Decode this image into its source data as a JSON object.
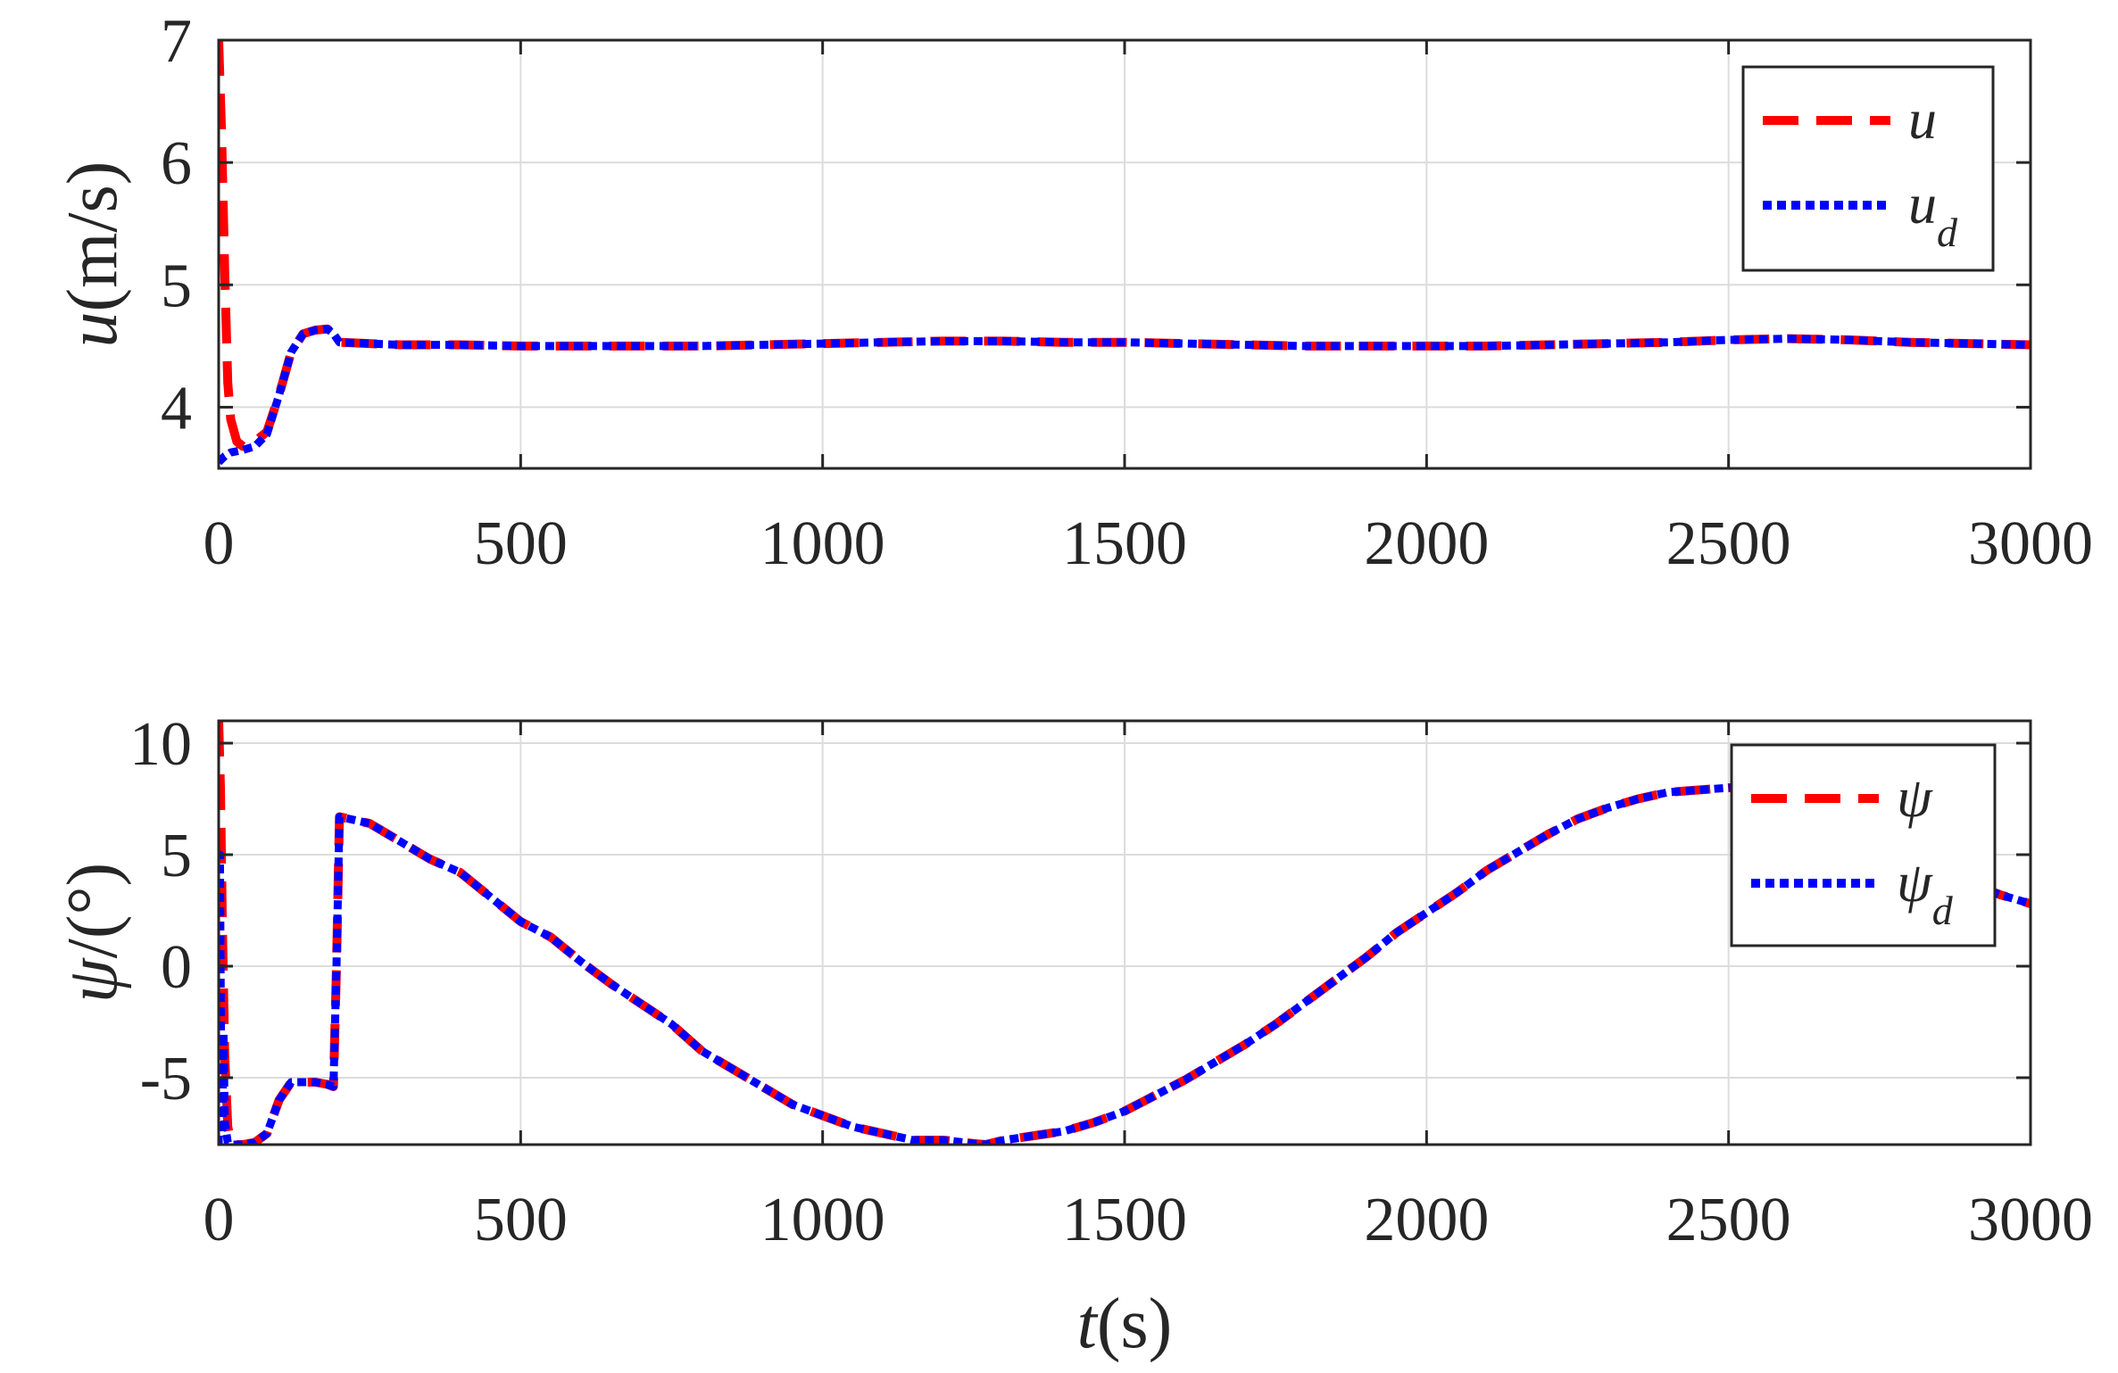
{
  "chart_data": [
    {
      "type": "line",
      "xlabel": {
        "var": "t",
        "unit": "(s)"
      },
      "ylabel": {
        "var": "u",
        "unit": "(m/s)"
      },
      "xlim": [
        0,
        3000
      ],
      "ylim": [
        3.5,
        7
      ],
      "x_ticks": [
        0,
        500,
        1000,
        1500,
        2000,
        2500,
        3000
      ],
      "x_tick_labels": [
        "0",
        "500",
        "1000",
        "1500",
        "2000",
        "2500",
        "3000"
      ],
      "y_ticks": [
        4,
        5,
        6,
        7
      ],
      "y_tick_labels": [
        "4",
        "5",
        "6",
        "7"
      ],
      "grid": true,
      "legend_position": "top-right",
      "series": [
        {
          "name": "u",
          "legend": {
            "base": "u",
            "sub": ""
          },
          "color": "#ff0000",
          "style": "dashed",
          "x": [
            0,
            5,
            10,
            15,
            20,
            30,
            40,
            60,
            80,
            100,
            120,
            140,
            160,
            180,
            190,
            200,
            250,
            300,
            400,
            500,
            600,
            700,
            800,
            900,
            1000,
            1100,
            1200,
            1300,
            1400,
            1500,
            1600,
            1700,
            1800,
            1900,
            2000,
            2100,
            2200,
            2300,
            2400,
            2500,
            2600,
            2700,
            2800,
            2900,
            3000
          ],
          "y": [
            7.0,
            6.2,
            5.1,
            4.2,
            3.9,
            3.72,
            3.68,
            3.72,
            3.8,
            4.1,
            4.45,
            4.6,
            4.63,
            4.64,
            4.6,
            4.53,
            4.52,
            4.51,
            4.51,
            4.5,
            4.5,
            4.5,
            4.5,
            4.51,
            4.52,
            4.53,
            4.54,
            4.54,
            4.53,
            4.53,
            4.52,
            4.51,
            4.5,
            4.5,
            4.5,
            4.5,
            4.51,
            4.52,
            4.53,
            4.55,
            4.56,
            4.55,
            4.53,
            4.52,
            4.51
          ]
        },
        {
          "name": "u_d",
          "legend": {
            "base": "u",
            "sub": "d"
          },
          "color": "#0000ff",
          "style": "dotted",
          "x": [
            0,
            10,
            20,
            40,
            60,
            80,
            100,
            120,
            140,
            160,
            180,
            190,
            200,
            250,
            300,
            400,
            500,
            600,
            700,
            800,
            900,
            1000,
            1100,
            1200,
            1300,
            1400,
            1500,
            1600,
            1700,
            1800,
            1900,
            2000,
            2100,
            2200,
            2300,
            2400,
            2500,
            2600,
            2700,
            2800,
            2900,
            3000
          ],
          "y": [
            3.55,
            3.6,
            3.63,
            3.65,
            3.68,
            3.78,
            4.1,
            4.45,
            4.6,
            4.63,
            4.64,
            4.6,
            4.53,
            4.52,
            4.51,
            4.51,
            4.5,
            4.5,
            4.5,
            4.5,
            4.51,
            4.52,
            4.53,
            4.54,
            4.54,
            4.53,
            4.53,
            4.52,
            4.51,
            4.5,
            4.5,
            4.5,
            4.5,
            4.51,
            4.52,
            4.53,
            4.55,
            4.56,
            4.55,
            4.53,
            4.52,
            4.51
          ]
        }
      ]
    },
    {
      "type": "line",
      "xlabel": {
        "var": "t",
        "unit": "(s)"
      },
      "ylabel": {
        "var": "ψ",
        "unit": "/(°)"
      },
      "xlim": [
        0,
        3000
      ],
      "ylim": [
        -8,
        11
      ],
      "x_ticks": [
        0,
        500,
        1000,
        1500,
        2000,
        2500,
        3000
      ],
      "x_tick_labels": [
        "0",
        "500",
        "1000",
        "1500",
        "2000",
        "2500",
        "3000"
      ],
      "y_ticks": [
        -5,
        0,
        5,
        10
      ],
      "y_tick_labels": [
        "-5",
        "0",
        "5",
        "10"
      ],
      "grid": true,
      "legend_position": "top-right",
      "series": [
        {
          "name": "ψ",
          "legend": {
            "base": "ψ",
            "sub": ""
          },
          "color": "#ff0000",
          "style": "dashed",
          "x": [
            0,
            3,
            6,
            10,
            15,
            20,
            30,
            40,
            60,
            80,
            100,
            120,
            140,
            160,
            180,
            190,
            195,
            200,
            250,
            300,
            350,
            400,
            450,
            500,
            550,
            600,
            650,
            700,
            750,
            800,
            850,
            900,
            950,
            1000,
            1050,
            1100,
            1150,
            1200,
            1250,
            1270,
            1300,
            1350,
            1400,
            1450,
            1500,
            1550,
            1600,
            1650,
            1700,
            1750,
            1800,
            1850,
            1900,
            1950,
            2000,
            2050,
            2100,
            2150,
            2200,
            2250,
            2300,
            2350,
            2400,
            2450,
            2500,
            2550,
            2600,
            2650,
            2700,
            2750,
            2800,
            2850,
            2900,
            2950,
            3000
          ],
          "y": [
            11,
            8,
            2,
            -4,
            -7.2,
            -7.9,
            -8,
            -8,
            -7.9,
            -7.5,
            -6,
            -5.2,
            -5.2,
            -5.2,
            -5.3,
            -5.4,
            0,
            6.7,
            6.4,
            5.6,
            4.8,
            4.2,
            3.1,
            2.0,
            1.3,
            0.2,
            -0.8,
            -1.7,
            -2.6,
            -3.8,
            -4.6,
            -5.4,
            -6.2,
            -6.7,
            -7.2,
            -7.5,
            -7.8,
            -7.8,
            -7.95,
            -8.0,
            -7.8,
            -7.6,
            -7.4,
            -7.0,
            -6.5,
            -5.8,
            -5.1,
            -4.3,
            -3.5,
            -2.6,
            -1.6,
            -0.6,
            0.4,
            1.5,
            2.4,
            3.3,
            4.3,
            5.1,
            5.9,
            6.6,
            7.1,
            7.5,
            7.8,
            7.9,
            8.0,
            8.0,
            7.8,
            7.2,
            6.5,
            5.8,
            5.0,
            4.3,
            3.7,
            3.2,
            2.8
          ]
        },
        {
          "name": "ψ_d",
          "legend": {
            "base": "ψ",
            "sub": "d"
          },
          "color": "#0000ff",
          "style": "dotted",
          "x": [
            0,
            2,
            4,
            6,
            8,
            10,
            15,
            20,
            30,
            40,
            60,
            80,
            100,
            120,
            140,
            160,
            180,
            190,
            195,
            200,
            250,
            300,
            350,
            400,
            450,
            500,
            550,
            600,
            650,
            700,
            750,
            800,
            850,
            900,
            950,
            1000,
            1050,
            1100,
            1150,
            1200,
            1250,
            1270,
            1300,
            1350,
            1400,
            1450,
            1500,
            1550,
            1600,
            1650,
            1700,
            1750,
            1800,
            1850,
            1900,
            1950,
            2000,
            2050,
            2100,
            2150,
            2200,
            2250,
            2300,
            2350,
            2400,
            2450,
            2500,
            2550,
            2600,
            2650,
            2700,
            2750,
            2800,
            2850,
            2900,
            2950,
            3000
          ],
          "y": [
            -8,
            5,
            -4,
            -7.5,
            -3,
            -7,
            -7.9,
            -8,
            -8,
            -8,
            -7.9,
            -7.5,
            -6,
            -5.2,
            -5.2,
            -5.2,
            -5.3,
            -5.4,
            0,
            6.7,
            6.4,
            5.6,
            4.8,
            4.2,
            3.1,
            2.0,
            1.3,
            0.2,
            -0.8,
            -1.7,
            -2.6,
            -3.8,
            -4.6,
            -5.4,
            -6.2,
            -6.7,
            -7.2,
            -7.5,
            -7.8,
            -7.8,
            -7.95,
            -8.0,
            -7.8,
            -7.6,
            -7.4,
            -7.0,
            -6.5,
            -5.8,
            -5.1,
            -4.3,
            -3.5,
            -2.6,
            -1.6,
            -0.6,
            0.4,
            1.5,
            2.4,
            3.3,
            4.3,
            5.1,
            5.9,
            6.6,
            7.1,
            7.5,
            7.8,
            7.9,
            8.0,
            8.0,
            7.8,
            7.2,
            6.5,
            5.8,
            5.0,
            4.3,
            3.7,
            3.2,
            2.8
          ]
        }
      ]
    }
  ]
}
